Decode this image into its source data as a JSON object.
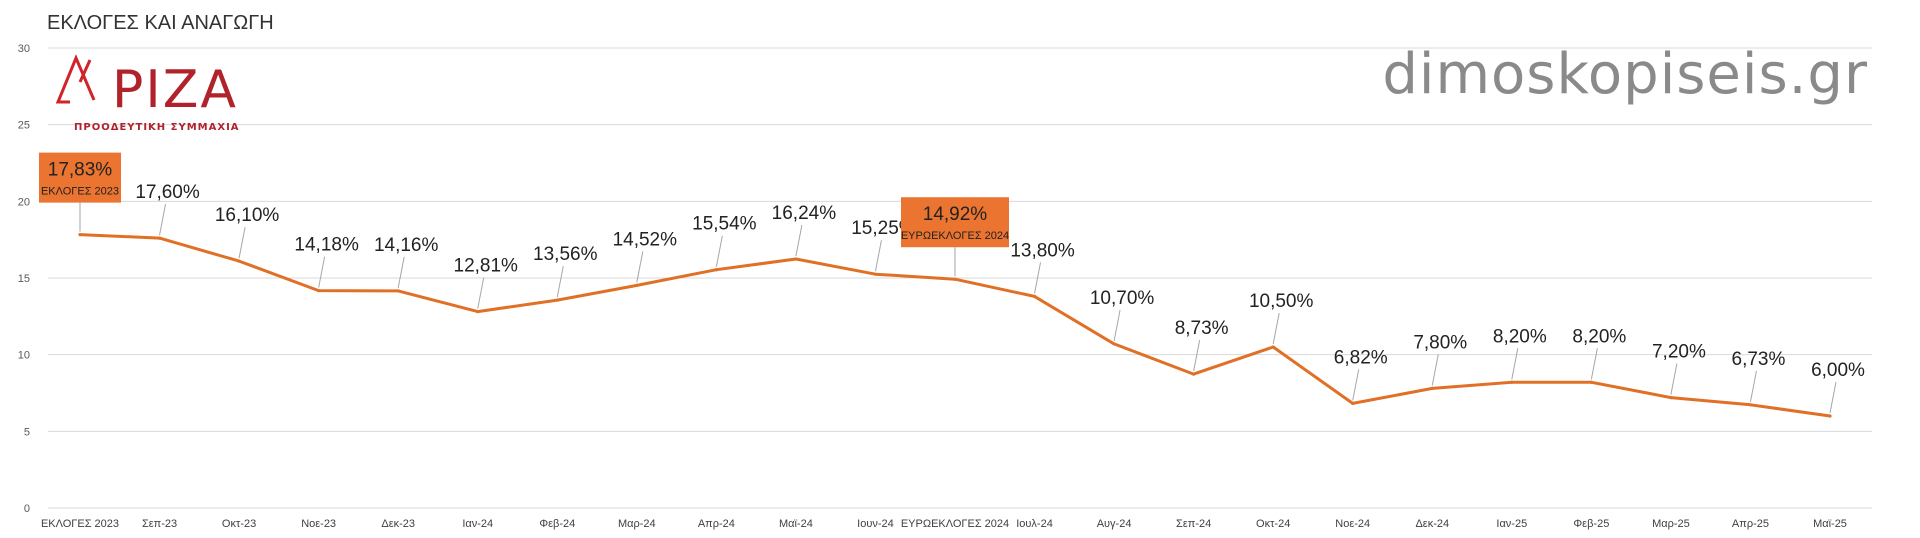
{
  "header": {
    "title": "ΕΚΛΟΓΕΣ ΚΑΙ ΑΝΑΓΩΓΗ",
    "watermark": "dimoskopiseis.gr"
  },
  "logo": {
    "word": "ΡΙΖΑ",
    "subtitle": "ΠΡΟΟΔΕΥΤΙΚΗ ΣΥΜΜΑΧΙΑ",
    "color": "#b0232a"
  },
  "chart_data": {
    "type": "line",
    "title": "",
    "xlabel": "",
    "ylabel": "",
    "ylim": [
      0,
      30
    ],
    "yticks": [
      0,
      5,
      10,
      15,
      20,
      25,
      30
    ],
    "grid": true,
    "line_color": "#e07026",
    "categories": [
      "ΕΚΛΟΓΕΣ 2023",
      "Σεπ-23",
      "Οκτ-23",
      "Νοε-23",
      "Δεκ-23",
      "Ιαν-24",
      "Φεβ-24",
      "Μαρ-24",
      "Απρ-24",
      "Μαϊ-24",
      "Ιουν-24",
      "ΕΥΡΩΕΚΛΟΓΕΣ 2024",
      "Ιουλ-24",
      "Αυγ-24",
      "Σεπ-24",
      "Οκτ-24",
      "Νοε-24",
      "Δεκ-24",
      "Ιαν-25",
      "Φεβ-25",
      "Μαρ-25",
      "Απρ-25",
      "Μαϊ-25"
    ],
    "values": [
      17.83,
      17.6,
      16.1,
      14.18,
      14.16,
      12.81,
      13.56,
      14.52,
      15.54,
      16.24,
      15.25,
      14.92,
      13.8,
      10.7,
      8.73,
      10.5,
      6.82,
      7.8,
      8.2,
      8.2,
      7.2,
      6.73,
      6.0
    ],
    "labels": [
      "17,83%",
      "17,60%",
      "16,10%",
      "14,18%",
      "14,16%",
      "12,81%",
      "13,56%",
      "14,52%",
      "15,54%",
      "16,24%",
      "15,25%",
      "14,92%",
      "13,80%",
      "10,70%",
      "8,73%",
      "10,50%",
      "6,82%",
      "7,80%",
      "8,20%",
      "8,20%",
      "7,20%",
      "6,73%",
      "6,00%"
    ],
    "highlights": [
      {
        "index": 0,
        "caption": "ΕΚΛΟΓΕΣ 2023",
        "color": "#ea7430"
      },
      {
        "index": 11,
        "caption": "ΕΥΡΩΕΚΛΟΓΕΣ 2024",
        "color": "#ea7430"
      }
    ]
  }
}
